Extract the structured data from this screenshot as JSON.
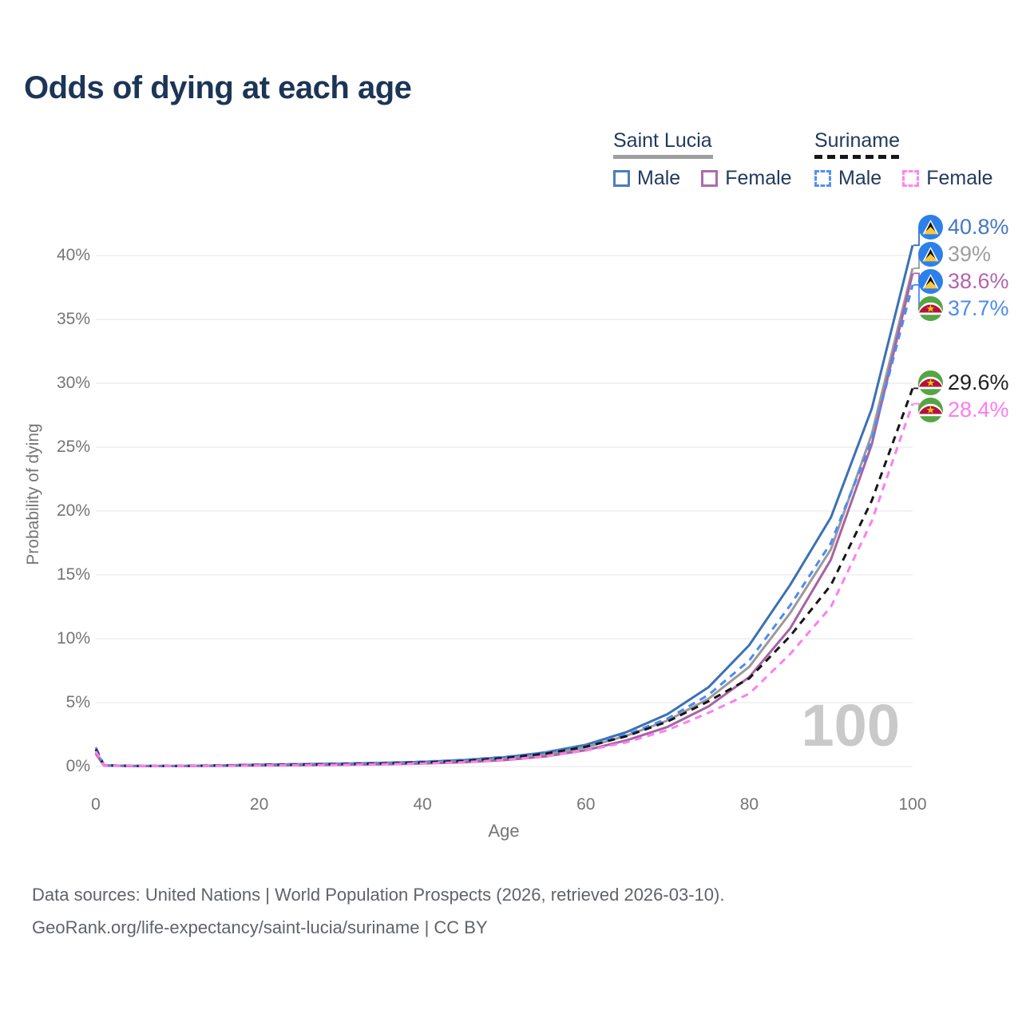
{
  "title": "Odds of dying at each age",
  "watermark": "100",
  "legend": {
    "groups": [
      {
        "label": "Saint Lucia",
        "underline_style": "solid",
        "underline_color": "#9e9e9e",
        "items": [
          {
            "label": "Male",
            "color": "#4a7ebb",
            "dash": false
          },
          {
            "label": "Female",
            "color": "#ad6cad",
            "dash": false
          }
        ]
      },
      {
        "label": "Suriname",
        "underline_style": "dashed",
        "underline_color": "#161616",
        "items": [
          {
            "label": "Male",
            "color": "#5590f2",
            "dash": true
          },
          {
            "label": "Female",
            "color": "#ff85f3",
            "dash": true
          }
        ]
      }
    ]
  },
  "chart_data": {
    "type": "line",
    "title": "Odds of dying at each age",
    "xlabel": "Age",
    "ylabel": "Probability of dying",
    "x_ticks": [
      0,
      20,
      40,
      60,
      80,
      100
    ],
    "y_ticks_percent": [
      0,
      5,
      10,
      15,
      20,
      25,
      30,
      35,
      40
    ],
    "xlim": [
      0,
      100
    ],
    "ylim_percent": [
      0,
      43
    ],
    "grid": "horizontal-only",
    "gridline_color": "#e9e9e9",
    "x": [
      0,
      1,
      5,
      10,
      15,
      20,
      25,
      30,
      35,
      40,
      45,
      50,
      55,
      60,
      65,
      70,
      75,
      80,
      85,
      90,
      95,
      100
    ],
    "series": [
      {
        "name": "Saint Lucia Male",
        "country": "Saint Lucia",
        "sex": "Male",
        "flag": "saint-lucia",
        "color": "#3c70b4",
        "dash": "solid",
        "end_label": "40.8%",
        "end_label_color": "#4277c6",
        "values": [
          1.2,
          0.09,
          0.04,
          0.04,
          0.08,
          0.14,
          0.18,
          0.22,
          0.28,
          0.36,
          0.5,
          0.72,
          1.1,
          1.7,
          2.7,
          4.1,
          6.2,
          9.5,
          14.2,
          19.5,
          28.0,
          40.8
        ]
      },
      {
        "name": "Saint Lucia Both sexes",
        "country": "Saint Lucia",
        "sex": "Both",
        "flag": "saint-lucia",
        "color": "#9a9a9a",
        "dash": "solid",
        "end_label": "39%",
        "end_label_color": "#9e9e9e",
        "values": [
          1.1,
          0.08,
          0.04,
          0.04,
          0.07,
          0.11,
          0.14,
          0.17,
          0.22,
          0.29,
          0.41,
          0.6,
          0.92,
          1.5,
          2.42,
          3.6,
          5.3,
          7.8,
          12.0,
          17.0,
          26.0,
          39.0
        ]
      },
      {
        "name": "Saint Lucia Female",
        "country": "Saint Lucia",
        "sex": "Female",
        "flag": "saint-lucia",
        "color": "#a763a4",
        "dash": "solid",
        "end_label": "38.6%",
        "end_label_color": "#b264ae",
        "values": [
          1.0,
          0.07,
          0.03,
          0.03,
          0.05,
          0.08,
          0.1,
          0.13,
          0.17,
          0.23,
          0.33,
          0.5,
          0.78,
          1.28,
          2.05,
          3.1,
          4.7,
          7.0,
          10.8,
          16.2,
          25.2,
          38.6
        ]
      },
      {
        "name": "Suriname Male",
        "country": "Suriname",
        "sex": "Male",
        "flag": "suriname",
        "color": "#4c8bf5",
        "dash": "dashed",
        "end_label": "37.7%",
        "end_label_color": "#4d8bf0",
        "values": [
          1.5,
          0.1,
          0.05,
          0.05,
          0.09,
          0.15,
          0.19,
          0.23,
          0.29,
          0.38,
          0.52,
          0.75,
          1.08,
          1.62,
          2.5,
          3.75,
          5.6,
          8.3,
          12.6,
          17.5,
          25.5,
          37.7
        ]
      },
      {
        "name": "Suriname Both sexes",
        "country": "Suriname",
        "sex": "Both",
        "flag": "suriname",
        "color": "#161616",
        "dash": "dashed",
        "end_label": "29.6%",
        "end_label_color": "#212121",
        "values": [
          1.35,
          0.09,
          0.04,
          0.04,
          0.08,
          0.12,
          0.15,
          0.19,
          0.24,
          0.31,
          0.44,
          0.66,
          1.0,
          1.55,
          2.38,
          3.52,
          5.1,
          6.9,
          10.2,
          14.2,
          20.8,
          29.6
        ]
      },
      {
        "name": "Suriname Female",
        "country": "Suriname",
        "sex": "Female",
        "flag": "suriname",
        "color": "#fb7ff0",
        "dash": "dashed",
        "end_label": "28.4%",
        "end_label_color": "#ff7bef",
        "values": [
          1.2,
          0.08,
          0.04,
          0.03,
          0.06,
          0.09,
          0.11,
          0.14,
          0.18,
          0.24,
          0.34,
          0.52,
          0.8,
          1.25,
          1.9,
          2.85,
          4.2,
          5.7,
          8.8,
          12.5,
          19.2,
          28.4
        ]
      }
    ]
  },
  "footer": {
    "line1": "Data sources: United Nations | World Population Prospects (2026, retrieved 2026-03-10).",
    "line2": "GeoRank.org/life-expectancy/saint-lucia/suriname | CC BY"
  }
}
